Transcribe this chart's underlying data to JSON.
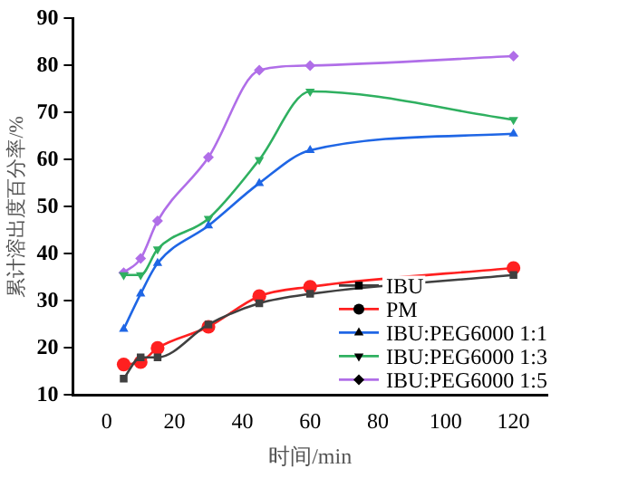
{
  "chart_data": {
    "type": "line",
    "xlabel": "时间/min",
    "ylabel": "累计溶出度百分率/%",
    "x": [
      5,
      10,
      15,
      30,
      45,
      60,
      120
    ],
    "xlim": [
      -10,
      130
    ],
    "xticks": [
      0,
      20,
      40,
      60,
      80,
      100,
      120
    ],
    "ylim": [
      10,
      90
    ],
    "yticks": [
      10,
      20,
      30,
      40,
      50,
      60,
      70,
      80,
      90
    ],
    "grid": false,
    "legend": "bottom right",
    "series": [
      {
        "name": "IBU",
        "color": "#404040",
        "marker": "square",
        "values": [
          13.5,
          18,
          18,
          25,
          29.5,
          31.5,
          35.5
        ]
      },
      {
        "name": "PM",
        "color": "#ff2020",
        "marker": "circle",
        "values": [
          16.5,
          17,
          20,
          24.5,
          31,
          33,
          37
        ]
      },
      {
        "name": "IBU:PEG6000 1:1",
        "color": "#1f66e5",
        "marker": "triangle",
        "values": [
          24,
          31.5,
          38,
          46,
          55,
          62,
          65.5
        ]
      },
      {
        "name": "IBU:PEG6000 1:3",
        "color": "#2fb060",
        "marker": "triangle-down",
        "values": [
          35.5,
          35.5,
          41,
          47.5,
          60,
          74.5,
          68.5
        ]
      },
      {
        "name": "IBU:PEG6000 1:5",
        "color": "#b06ee8",
        "marker": "diamond",
        "values": [
          36,
          39,
          47,
          60.5,
          79,
          80,
          82
        ]
      }
    ]
  }
}
